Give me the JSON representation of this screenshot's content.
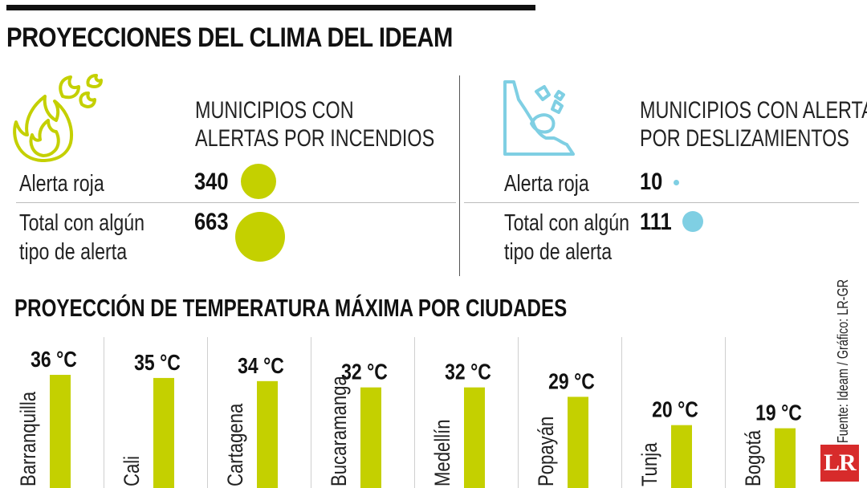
{
  "title": "PROYECCIONES DEL CLIMA DEL IDEAM",
  "fires": {
    "heading_line1": "MUNICIPIOS CON",
    "heading_line2": "ALERTAS POR INCENDIOS",
    "icon": "fire-icon",
    "red_label": "Alerta roja",
    "red_value": "340",
    "total_label_line1": "Total con algún",
    "total_label_line2": "tipo de alerta",
    "total_value": "663",
    "color": "#c4d000"
  },
  "landslides": {
    "heading_line1": "MUNICIPIOS CON ALERTAS",
    "heading_line2": "POR DESLIZAMIENTOS",
    "icon": "landslide-icon",
    "red_label": "Alerta roja",
    "red_value": "10",
    "total_label_line1": "Total con algún",
    "total_label_line2": "tipo de alerta",
    "total_value": "111",
    "color": "#7fcfe3"
  },
  "chart_data": {
    "type": "bar",
    "title": "PROYECCIÓN DE TEMPERATURA MÁXIMA POR CIUDADES",
    "categories": [
      "Barranquilla",
      "Cali",
      "Cartagena",
      "Bucaramanga",
      "Medellín",
      "Popayán",
      "Tunja",
      "Bogotá"
    ],
    "values": [
      36,
      35,
      34,
      32,
      32,
      29,
      20,
      19
    ],
    "value_labels": [
      "36 °C",
      "35 °C",
      "34 °C",
      "32 °C",
      "32 °C",
      "29 °C",
      "20 °C",
      "19 °C"
    ],
    "bar_color": "#c4d000"
  },
  "source": "Fuente: Ideam / Gráfico: LR-GR",
  "logo_text": "LR"
}
